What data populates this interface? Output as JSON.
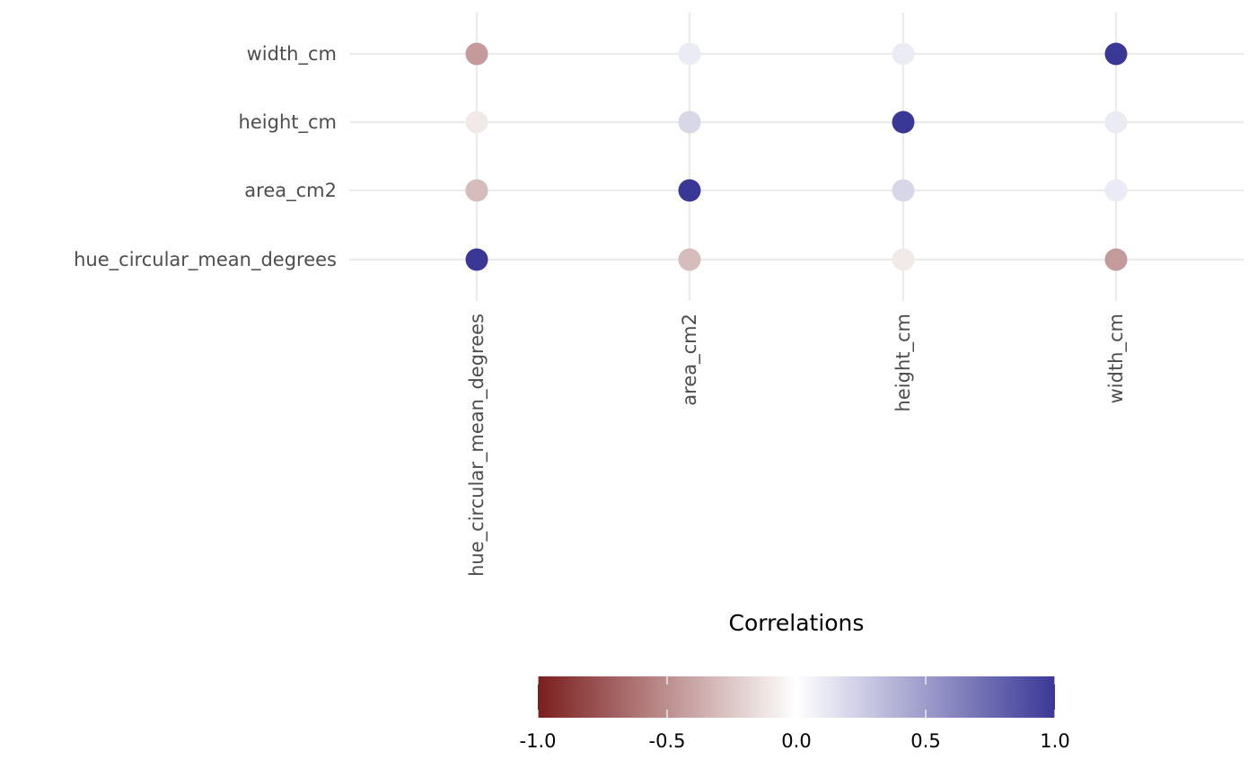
{
  "chart_data": {
    "type": "scatter",
    "x_categories": [
      "hue_circular_mean_degrees",
      "area_cm2",
      "height_cm",
      "width_cm"
    ],
    "y_categories": [
      "hue_circular_mean_degrees",
      "area_cm2",
      "height_cm",
      "width_cm"
    ],
    "matrix": [
      [
        1.0,
        -0.3,
        -0.1,
        -0.45
      ],
      [
        -0.3,
        1.0,
        0.2,
        0.1
      ],
      [
        -0.1,
        0.2,
        1.0,
        0.1
      ],
      [
        -0.45,
        0.1,
        0.1,
        1.0
      ]
    ],
    "legend": {
      "title": "Correlations",
      "ticks": [
        "-1.0",
        "-0.5",
        "0.0",
        "0.5",
        "1.0"
      ],
      "range": [
        -1.0,
        1.0
      ],
      "placement": "bottom"
    },
    "colors": {
      "low": "#7b1e1e",
      "mid": "#ffffff",
      "high": "#3a3896",
      "grid": "#ebebeb"
    },
    "grid": true
  }
}
